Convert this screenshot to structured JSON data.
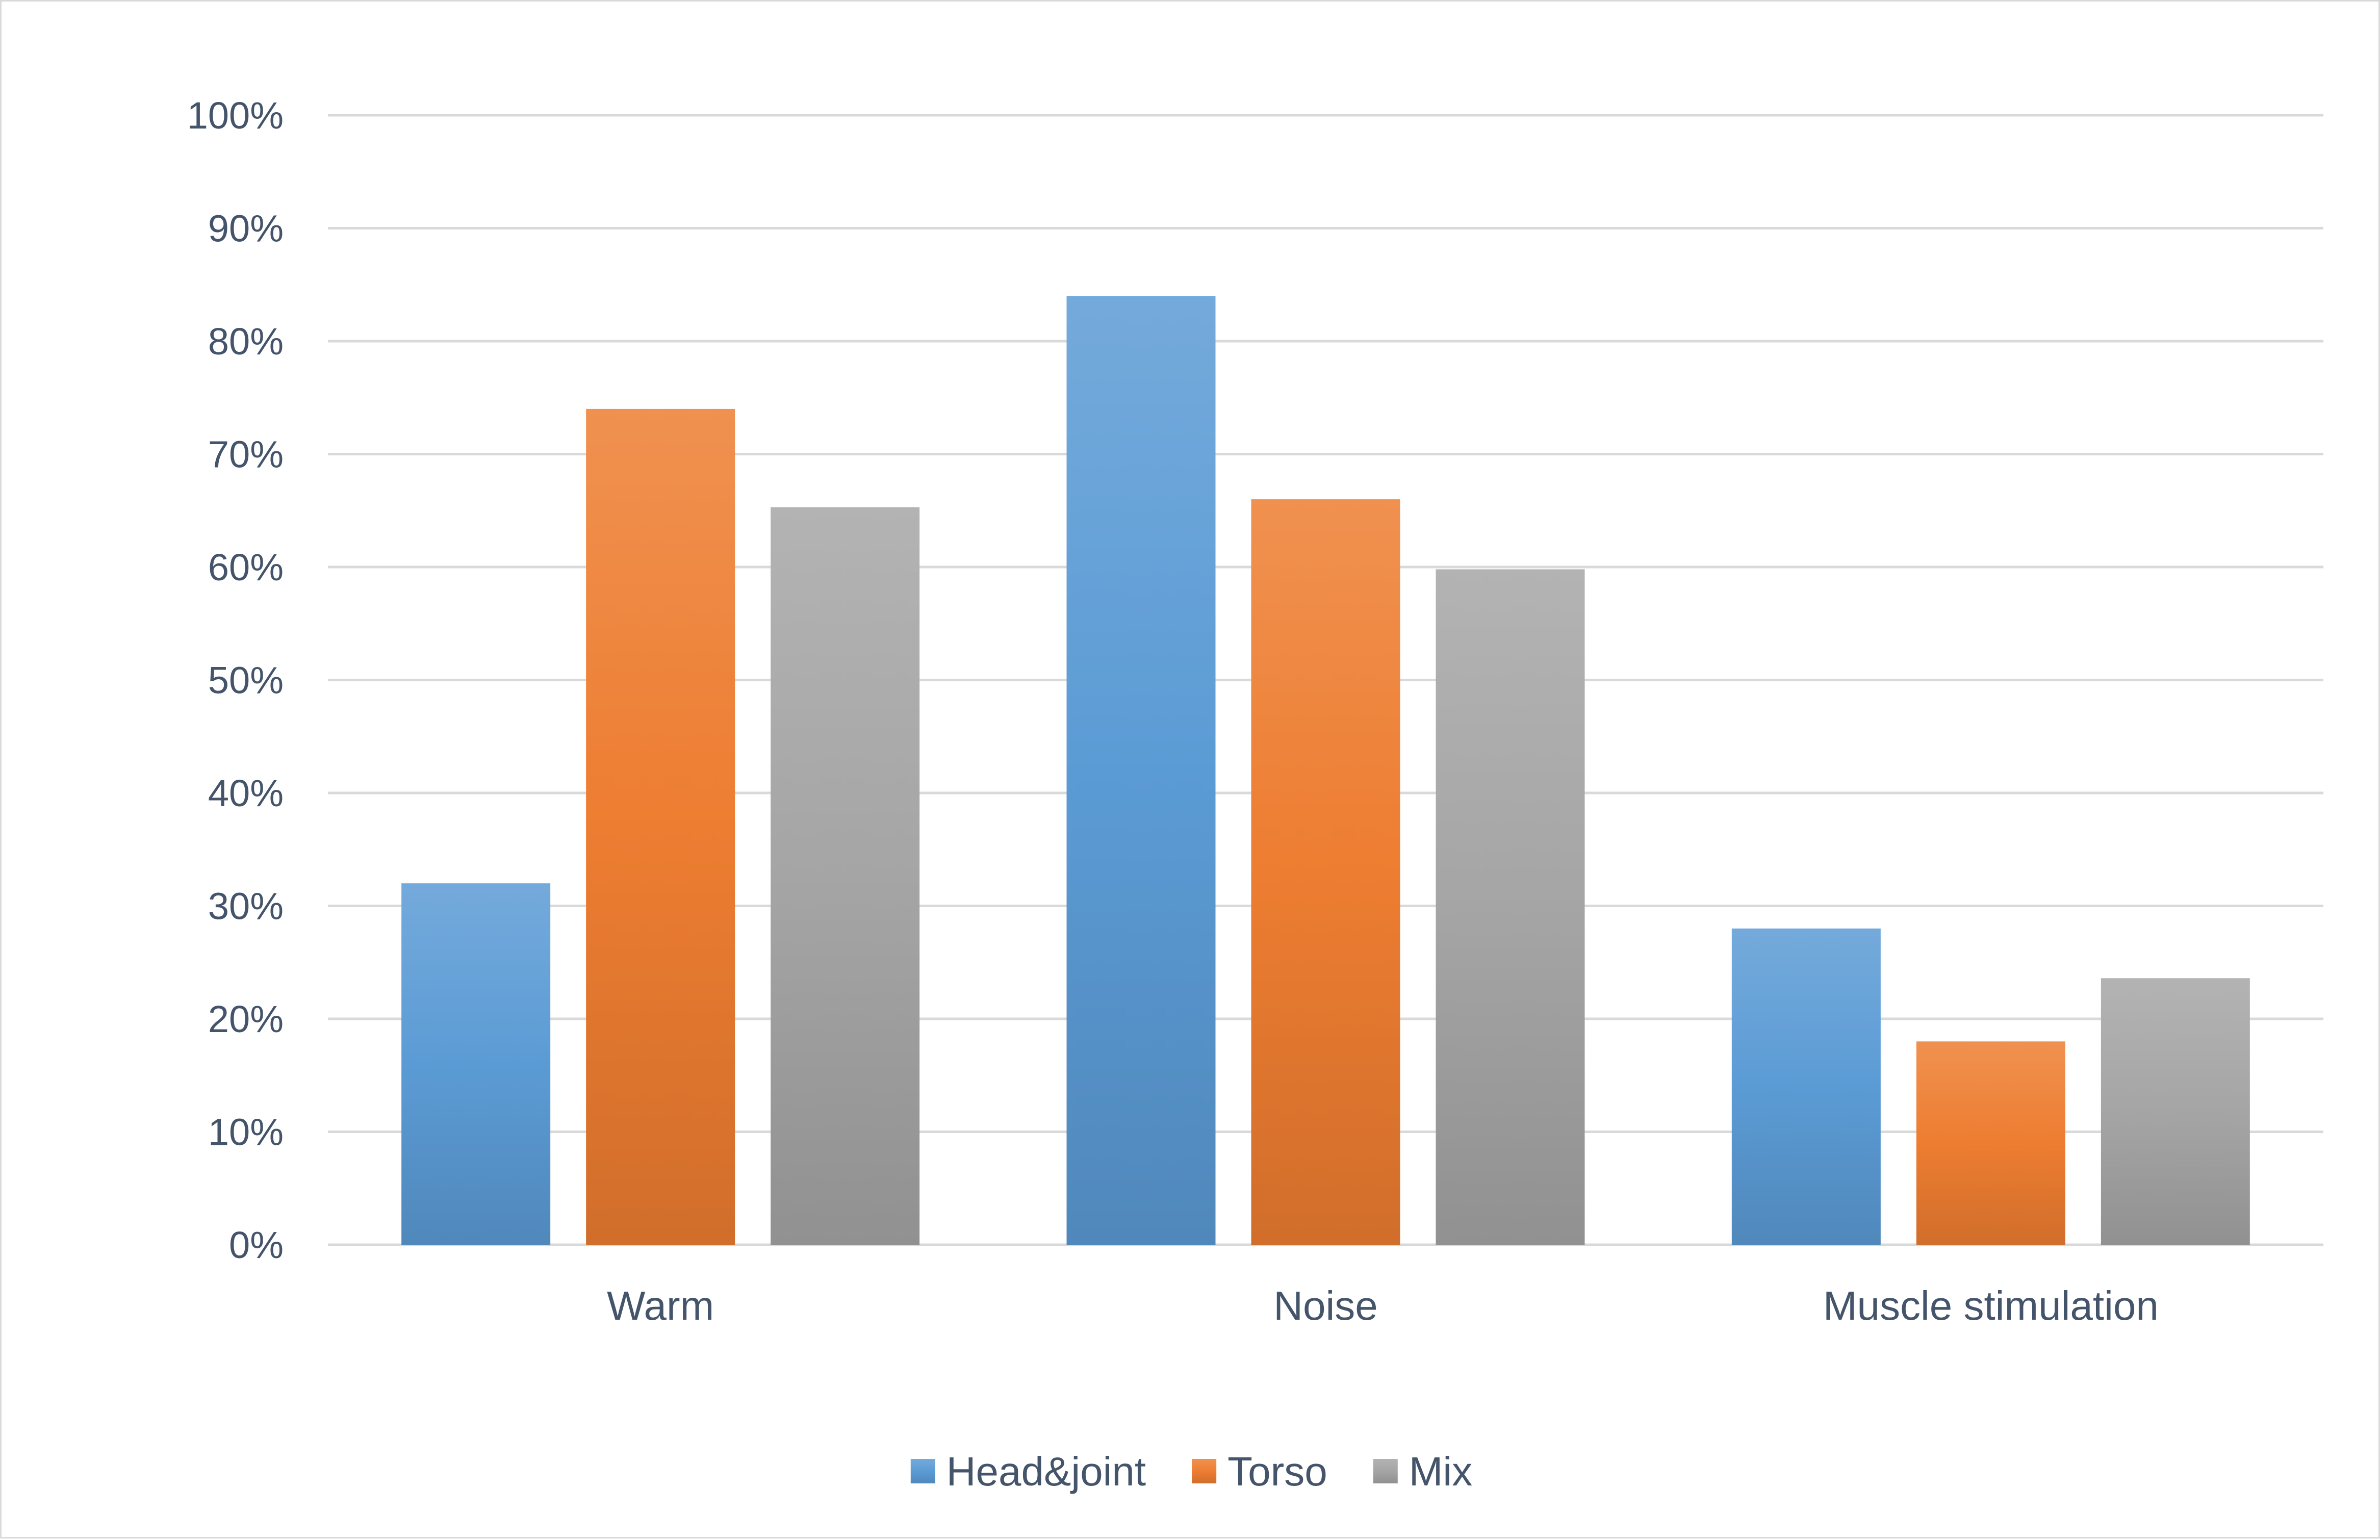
{
  "chart_data": {
    "type": "bar",
    "title": "",
    "xlabel": "",
    "ylabel": "",
    "categories": [
      "Warm",
      "Noise",
      "Muscle stimulation"
    ],
    "series": [
      {
        "name": "Head&joint",
        "values": [
          32,
          84,
          28
        ],
        "color": "#5b9bd5"
      },
      {
        "name": "Torso",
        "values": [
          74,
          66,
          18
        ],
        "color": "#ed7d31"
      },
      {
        "name": "Mix",
        "values": [
          65.3,
          59.8,
          23.6
        ],
        "color": "#a5a5a5"
      }
    ],
    "ylim": [
      0,
      100
    ],
    "yticks": [
      "0%",
      "10%",
      "20%",
      "30%",
      "40%",
      "50%",
      "60%",
      "70%",
      "80%",
      "90%",
      "100%"
    ],
    "grid": true,
    "legend": "bottom-center"
  }
}
